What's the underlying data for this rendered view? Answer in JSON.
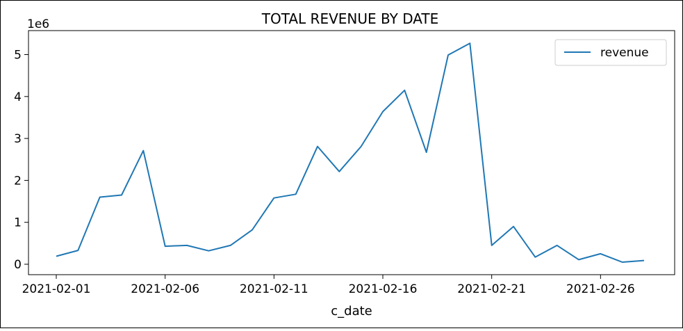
{
  "chart_data": {
    "type": "line",
    "title": "TOTAL REVENUE BY DATE",
    "xlabel": "c_date",
    "ylabel": "",
    "y_offset_label": "1e6",
    "x": [
      "2021-02-01",
      "2021-02-02",
      "2021-02-03",
      "2021-02-04",
      "2021-02-05",
      "2021-02-06",
      "2021-02-07",
      "2021-02-08",
      "2021-02-09",
      "2021-02-10",
      "2021-02-11",
      "2021-02-12",
      "2021-02-13",
      "2021-02-14",
      "2021-02-15",
      "2021-02-16",
      "2021-02-17",
      "2021-02-18",
      "2021-02-19",
      "2021-02-20",
      "2021-02-21",
      "2021-02-22",
      "2021-02-23",
      "2021-02-24",
      "2021-02-25",
      "2021-02-26",
      "2021-02-27",
      "2021-02-28"
    ],
    "series": [
      {
        "name": "revenue",
        "color": "#1f77b4",
        "values": [
          190000,
          330000,
          1600000,
          1650000,
          2710000,
          430000,
          450000,
          320000,
          450000,
          820000,
          1580000,
          1670000,
          2810000,
          2210000,
          2810000,
          3640000,
          4150000,
          2670000,
          4990000,
          5270000,
          450000,
          900000,
          170000,
          450000,
          110000,
          250000,
          50000,
          90000
        ]
      }
    ],
    "x_tick_labels": [
      "2021-02-01",
      "2021-02-06",
      "2021-02-11",
      "2021-02-16",
      "2021-02-21",
      "2021-02-26"
    ],
    "y_ticks": [
      0,
      1000000,
      2000000,
      3000000,
      4000000,
      5000000
    ],
    "y_tick_labels": [
      "0",
      "1",
      "2",
      "3",
      "4",
      "5"
    ],
    "ylim": [
      -300000,
      5500000
    ],
    "legend_position": "top-right",
    "grid": false
  }
}
